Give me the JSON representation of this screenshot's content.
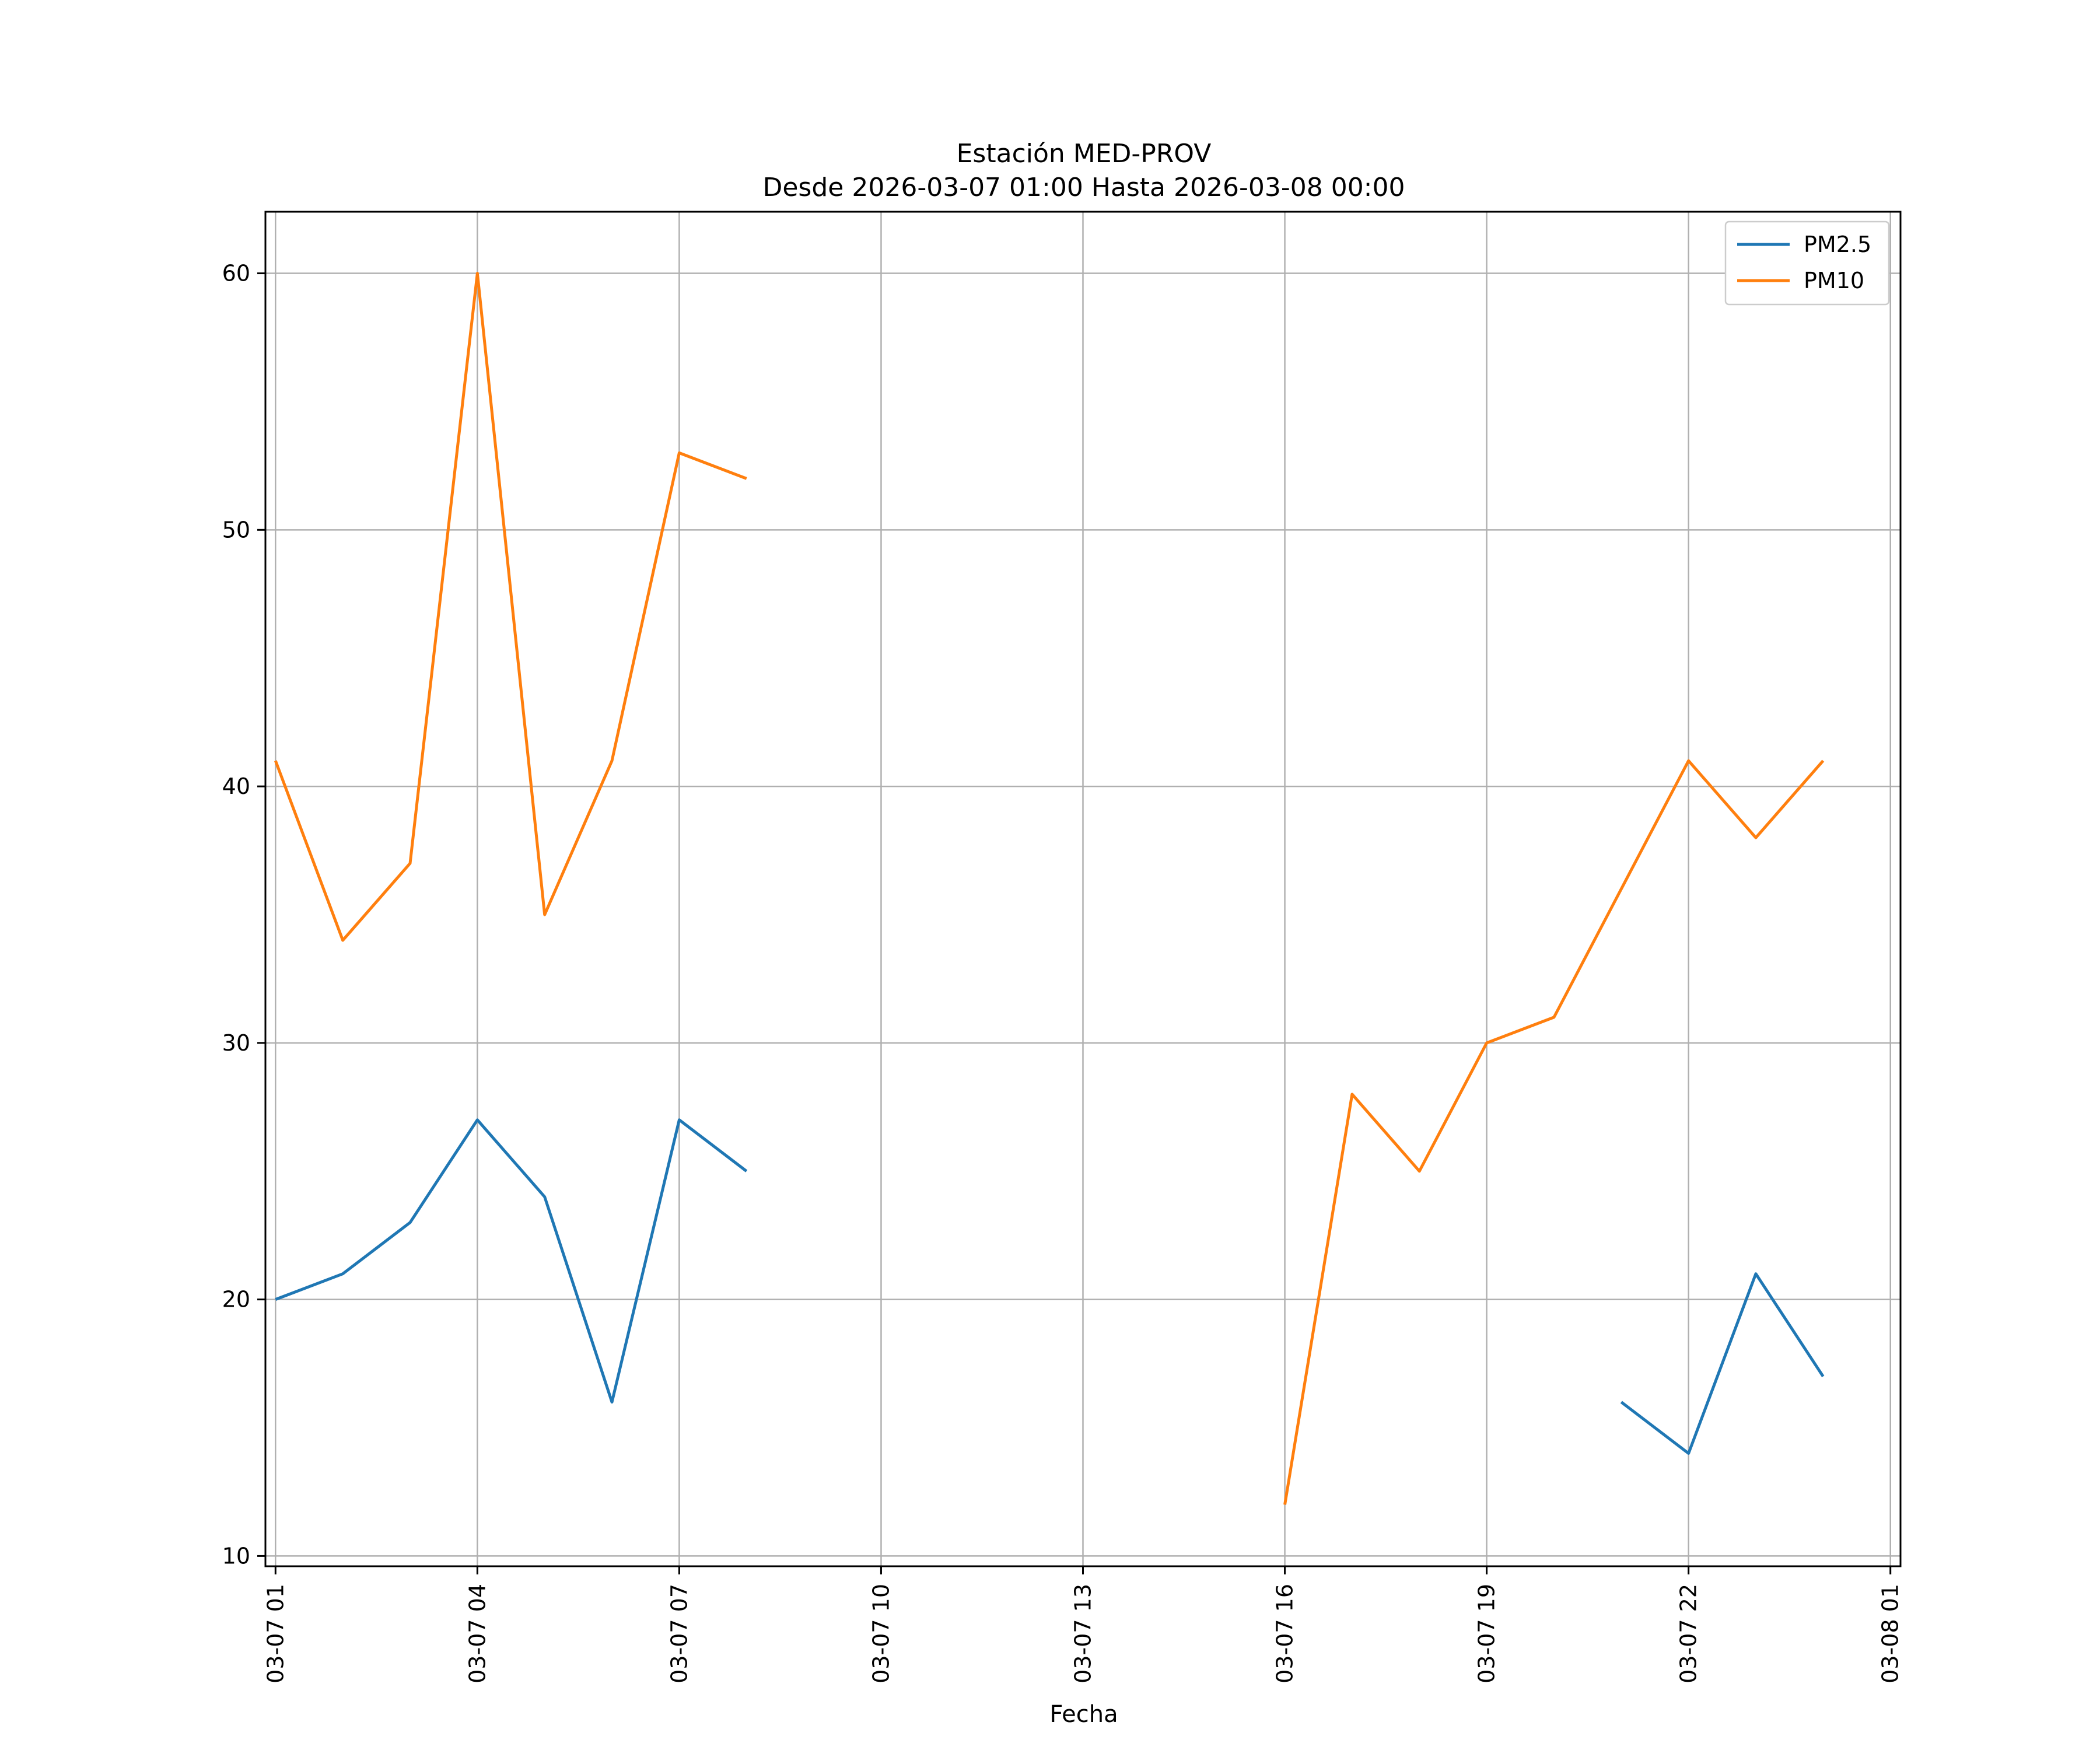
{
  "chart_data": {
    "type": "line",
    "title": [
      "Estación MED-PROV",
      "Desde 2026-03-07 01:00 Hasta 2026-03-08 00:00"
    ],
    "xlabel": "Fecha",
    "ylabel": "",
    "x": [
      "03-07 01",
      "03-07 02",
      "03-07 03",
      "03-07 04",
      "03-07 05",
      "03-07 06",
      "03-07 07",
      "03-07 08",
      "03-07 09",
      "03-07 10",
      "03-07 11",
      "03-07 12",
      "03-07 13",
      "03-07 14",
      "03-07 15",
      "03-07 16",
      "03-07 17",
      "03-07 18",
      "03-07 19",
      "03-07 20",
      "03-07 21",
      "03-07 22",
      "03-07 23",
      "03-08 00"
    ],
    "series": [
      {
        "name": "PM2.5",
        "color": "#1f77b4",
        "values": [
          20,
          21,
          23,
          27,
          24,
          16,
          27,
          25,
          null,
          null,
          null,
          null,
          null,
          null,
          null,
          null,
          null,
          null,
          null,
          null,
          16,
          14,
          21,
          17
        ]
      },
      {
        "name": "PM10",
        "color": "#ff7f0e",
        "values": [
          41,
          34,
          37,
          60,
          35,
          41,
          53,
          52,
          null,
          null,
          null,
          null,
          null,
          null,
          null,
          12,
          28,
          25,
          30,
          31,
          36,
          41,
          38,
          41
        ]
      }
    ],
    "xticks": [
      "03-07 01",
      "03-07 04",
      "03-07 07",
      "03-07 10",
      "03-07 13",
      "03-07 16",
      "03-07 19",
      "03-07 22",
      "03-08 01"
    ],
    "xlim": [
      "03-07 00:51",
      "03-08 01:09"
    ],
    "yticks": [
      10,
      20,
      30,
      40,
      50,
      60
    ],
    "ylim": [
      9.6,
      62.4
    ],
    "grid": true,
    "legend": "top-right"
  }
}
